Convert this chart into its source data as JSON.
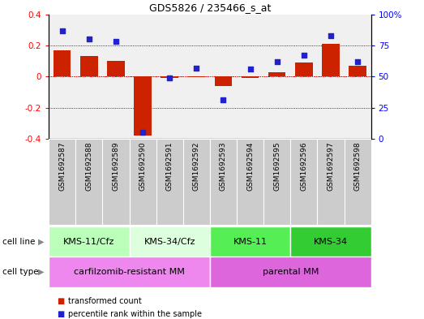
{
  "title": "GDS5826 / 235466_s_at",
  "samples": [
    "GSM1692587",
    "GSM1692588",
    "GSM1692589",
    "GSM1692590",
    "GSM1692591",
    "GSM1692592",
    "GSM1692593",
    "GSM1692594",
    "GSM1692595",
    "GSM1692596",
    "GSM1692597",
    "GSM1692598"
  ],
  "transformed_count": [
    0.17,
    0.13,
    0.1,
    -0.38,
    -0.01,
    -0.005,
    -0.06,
    -0.01,
    0.03,
    0.09,
    0.21,
    0.07
  ],
  "percentile_rank": [
    87,
    80,
    78,
    5,
    49,
    57,
    31,
    56,
    62,
    67,
    83,
    62
  ],
  "cell_line_groups": [
    {
      "label": "KMS-11/Cfz",
      "start": 0,
      "end": 3,
      "color": "#bbffbb"
    },
    {
      "label": "KMS-34/Cfz",
      "start": 3,
      "end": 6,
      "color": "#ddffdd"
    },
    {
      "label": "KMS-11",
      "start": 6,
      "end": 9,
      "color": "#55ee55"
    },
    {
      "label": "KMS-34",
      "start": 9,
      "end": 12,
      "color": "#33cc33"
    }
  ],
  "cell_type_groups": [
    {
      "label": "carfilzomib-resistant MM",
      "start": 0,
      "end": 6,
      "color": "#ee88ee"
    },
    {
      "label": "parental MM",
      "start": 6,
      "end": 12,
      "color": "#dd66dd"
    }
  ],
  "ylim_left": [
    -0.4,
    0.4
  ],
  "ylim_right": [
    0,
    100
  ],
  "yticks_left": [
    -0.4,
    -0.2,
    0.0,
    0.2,
    0.4
  ],
  "ytick_labels_left": [
    "-0.4",
    "-0.2",
    "0",
    "0.2",
    "0.4"
  ],
  "yticks_right": [
    0,
    25,
    50,
    75,
    100
  ],
  "ytick_labels_right": [
    "0",
    "25",
    "50",
    "75",
    "100%"
  ],
  "bar_color": "#cc2200",
  "dot_color": "#2222cc",
  "background_color": "#f0f0f0",
  "sample_box_color": "#cccccc",
  "legend_items": [
    {
      "label": "transformed count",
      "color": "#cc2200"
    },
    {
      "label": "percentile rank within the sample",
      "color": "#2222cc"
    }
  ]
}
